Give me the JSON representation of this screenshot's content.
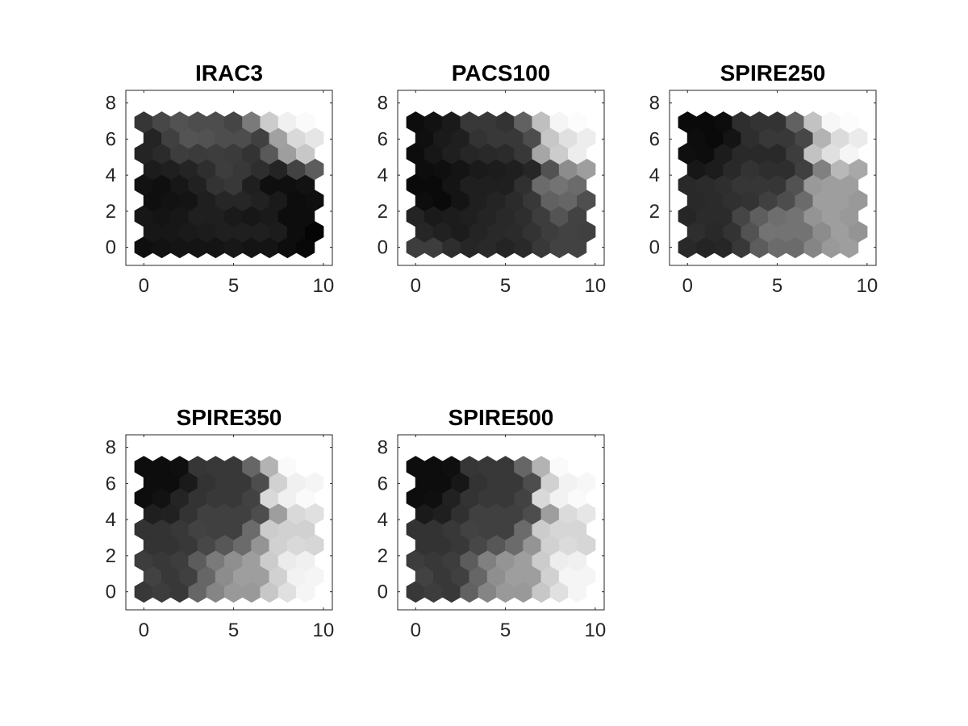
{
  "chart_data": [
    {
      "type": "heatmap",
      "layout": "hexagonal",
      "title": "IRAC3",
      "xlim": [
        -1,
        10.5
      ],
      "ylim": [
        -1,
        8.7
      ],
      "xticks": [
        "0",
        "5",
        "10"
      ],
      "yticks": [
        "0",
        "2",
        "4",
        "6",
        "8"
      ],
      "grid": "off",
      "colormap": "gray",
      "rows": [
        [
          0.06,
          0.07,
          0.08,
          0.08,
          0.08,
          0.09,
          0.08,
          0.08,
          0.05,
          0.03
        ],
        [
          0.09,
          0.09,
          0.1,
          0.11,
          0.12,
          0.12,
          0.12,
          0.11,
          0.05,
          0.02
        ],
        [
          0.09,
          0.08,
          0.09,
          0.12,
          0.12,
          0.1,
          0.09,
          0.1,
          0.05,
          0.05
        ],
        [
          0.06,
          0.07,
          0.08,
          0.12,
          0.15,
          0.15,
          0.13,
          0.1,
          0.05,
          0.06
        ],
        [
          0.07,
          0.06,
          0.09,
          0.13,
          0.2,
          0.22,
          0.12,
          0.06,
          0.06,
          0.07
        ],
        [
          0.11,
          0.12,
          0.14,
          0.18,
          0.24,
          0.22,
          0.18,
          0.14,
          0.26,
          0.36
        ],
        [
          0.14,
          0.17,
          0.24,
          0.23,
          0.24,
          0.23,
          0.2,
          0.35,
          0.62,
          0.78
        ],
        [
          0.14,
          0.25,
          0.33,
          0.32,
          0.3,
          0.3,
          0.25,
          0.63,
          0.85,
          0.9
        ],
        [
          0.21,
          0.28,
          0.32,
          0.3,
          0.3,
          0.27,
          0.48,
          0.8,
          0.94,
          0.98
        ]
      ]
    },
    {
      "type": "heatmap",
      "layout": "hexagonal",
      "title": "PACS100",
      "xlim": [
        -1,
        10.5
      ],
      "ylim": [
        -1,
        8.7
      ],
      "xticks": [
        "0",
        "5",
        "10"
      ],
      "yticks": [
        "0",
        "2",
        "4",
        "6",
        "8"
      ],
      "grid": "off",
      "colormap": "gray",
      "rows": [
        [
          0.24,
          0.24,
          0.18,
          0.15,
          0.16,
          0.14,
          0.16,
          0.22,
          0.26,
          0.26
        ],
        [
          0.15,
          0.13,
          0.11,
          0.14,
          0.16,
          0.17,
          0.2,
          0.24,
          0.26,
          0.25
        ],
        [
          0.14,
          0.1,
          0.11,
          0.12,
          0.14,
          0.16,
          0.18,
          0.24,
          0.33,
          0.26
        ],
        [
          0.05,
          0.04,
          0.08,
          0.12,
          0.14,
          0.17,
          0.22,
          0.38,
          0.4,
          0.31
        ],
        [
          0.04,
          0.04,
          0.08,
          0.12,
          0.12,
          0.12,
          0.19,
          0.42,
          0.45,
          0.42
        ],
        [
          0.05,
          0.06,
          0.08,
          0.1,
          0.11,
          0.12,
          0.15,
          0.32,
          0.55,
          0.62
        ],
        [
          0.05,
          0.09,
          0.12,
          0.15,
          0.16,
          0.17,
          0.22,
          0.65,
          0.8,
          0.93
        ],
        [
          0.06,
          0.1,
          0.12,
          0.2,
          0.22,
          0.22,
          0.3,
          0.78,
          0.88,
          0.93
        ],
        [
          0.05,
          0.07,
          0.1,
          0.22,
          0.22,
          0.2,
          0.38,
          0.75,
          0.96,
          0.99
        ]
      ]
    },
    {
      "type": "heatmap",
      "layout": "hexagonal",
      "title": "SPIRE250",
      "xlim": [
        -1,
        10.5
      ],
      "ylim": [
        -1,
        8.7
      ],
      "xticks": [
        "0",
        "5",
        "10"
      ],
      "yticks": [
        "0",
        "2",
        "4",
        "6",
        "8"
      ],
      "grid": "off",
      "colormap": "gray",
      "rows": [
        [
          0.16,
          0.14,
          0.15,
          0.22,
          0.36,
          0.42,
          0.42,
          0.52,
          0.6,
          0.62
        ],
        [
          0.18,
          0.16,
          0.2,
          0.32,
          0.45,
          0.45,
          0.45,
          0.55,
          0.62,
          0.58
        ],
        [
          0.15,
          0.17,
          0.17,
          0.27,
          0.37,
          0.43,
          0.45,
          0.58,
          0.62,
          0.6
        ],
        [
          0.16,
          0.17,
          0.19,
          0.2,
          0.25,
          0.3,
          0.42,
          0.62,
          0.62,
          0.6
        ],
        [
          0.16,
          0.17,
          0.18,
          0.21,
          0.21,
          0.21,
          0.32,
          0.6,
          0.62,
          0.62
        ],
        [
          0.09,
          0.11,
          0.16,
          0.2,
          0.18,
          0.18,
          0.25,
          0.5,
          0.72,
          0.66
        ],
        [
          0.06,
          0.05,
          0.11,
          0.16,
          0.16,
          0.16,
          0.24,
          0.76,
          0.88,
          0.96
        ],
        [
          0.05,
          0.04,
          0.08,
          0.18,
          0.22,
          0.22,
          0.28,
          0.7,
          0.86,
          0.92
        ],
        [
          0.04,
          0.04,
          0.05,
          0.18,
          0.2,
          0.2,
          0.38,
          0.76,
          0.97,
          0.99
        ]
      ]
    },
    {
      "type": "heatmap",
      "layout": "hexagonal",
      "title": "SPIRE350",
      "xlim": [
        -1,
        10.5
      ],
      "ylim": [
        -1,
        8.7
      ],
      "xticks": [
        "0",
        "5",
        "10"
      ],
      "yticks": [
        "0",
        "2",
        "4",
        "6",
        "8"
      ],
      "grid": "off",
      "colormap": "gray",
      "rows": [
        [
          0.22,
          0.24,
          0.22,
          0.4,
          0.52,
          0.6,
          0.6,
          0.78,
          0.88,
          0.96
        ],
        [
          0.26,
          0.22,
          0.25,
          0.4,
          0.55,
          0.62,
          0.62,
          0.82,
          0.95,
          0.96
        ],
        [
          0.24,
          0.22,
          0.24,
          0.36,
          0.48,
          0.56,
          0.62,
          0.8,
          0.92,
          0.94
        ],
        [
          0.2,
          0.2,
          0.22,
          0.28,
          0.34,
          0.42,
          0.58,
          0.82,
          0.85,
          0.84
        ],
        [
          0.2,
          0.2,
          0.22,
          0.26,
          0.25,
          0.25,
          0.42,
          0.8,
          0.82,
          0.82
        ],
        [
          0.12,
          0.13,
          0.2,
          0.25,
          0.25,
          0.25,
          0.3,
          0.62,
          0.85,
          0.88
        ],
        [
          0.05,
          0.07,
          0.14,
          0.2,
          0.22,
          0.22,
          0.26,
          0.85,
          0.94,
          0.98
        ],
        [
          0.05,
          0.05,
          0.1,
          0.2,
          0.22,
          0.22,
          0.3,
          0.82,
          0.94,
          0.96
        ],
        [
          0.05,
          0.05,
          0.06,
          0.21,
          0.22,
          0.22,
          0.4,
          0.7,
          0.98,
          1.0
        ]
      ]
    },
    {
      "type": "heatmap",
      "layout": "hexagonal",
      "title": "SPIRE500",
      "xlim": [
        -1,
        10.5
      ],
      "ylim": [
        -1,
        8.7
      ],
      "xticks": [
        "0",
        "5",
        "10"
      ],
      "yticks": [
        "0",
        "2",
        "4",
        "6",
        "8"
      ],
      "grid": "off",
      "colormap": "gray",
      "rows": [
        [
          0.22,
          0.24,
          0.22,
          0.38,
          0.52,
          0.6,
          0.6,
          0.78,
          0.88,
          0.96
        ],
        [
          0.26,
          0.22,
          0.25,
          0.4,
          0.56,
          0.62,
          0.62,
          0.82,
          0.96,
          0.96
        ],
        [
          0.24,
          0.22,
          0.24,
          0.36,
          0.5,
          0.58,
          0.62,
          0.8,
          0.93,
          0.94
        ],
        [
          0.2,
          0.2,
          0.22,
          0.28,
          0.34,
          0.42,
          0.58,
          0.82,
          0.86,
          0.84
        ],
        [
          0.2,
          0.2,
          0.22,
          0.26,
          0.25,
          0.25,
          0.42,
          0.8,
          0.84,
          0.84
        ],
        [
          0.1,
          0.12,
          0.19,
          0.25,
          0.25,
          0.25,
          0.3,
          0.62,
          0.86,
          0.9
        ],
        [
          0.05,
          0.06,
          0.13,
          0.2,
          0.22,
          0.22,
          0.26,
          0.85,
          0.95,
          0.98
        ],
        [
          0.05,
          0.05,
          0.09,
          0.2,
          0.22,
          0.22,
          0.3,
          0.82,
          0.95,
          0.97
        ],
        [
          0.05,
          0.05,
          0.06,
          0.21,
          0.22,
          0.22,
          0.4,
          0.7,
          0.98,
          1.0
        ]
      ]
    }
  ]
}
